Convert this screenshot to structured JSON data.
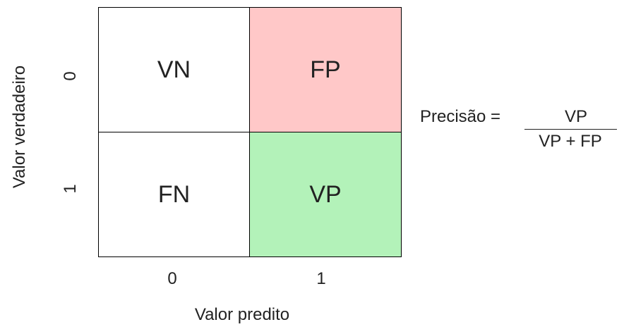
{
  "matrix": {
    "cells": [
      {
        "label": "VN",
        "color": "#ffffff"
      },
      {
        "label": "FP",
        "color": "#ffc8c8"
      },
      {
        "label": "FN",
        "color": "#ffffff"
      },
      {
        "label": "VP",
        "color": "#b3f2b9"
      }
    ],
    "y_ticks": [
      "0",
      "1"
    ],
    "x_ticks": [
      "0",
      "1"
    ],
    "y_label": "Valor verdadeiro",
    "x_label": "Valor predito"
  },
  "formula": {
    "label": "Precisão =",
    "numerator": "VP",
    "denominator": "VP + FP"
  }
}
